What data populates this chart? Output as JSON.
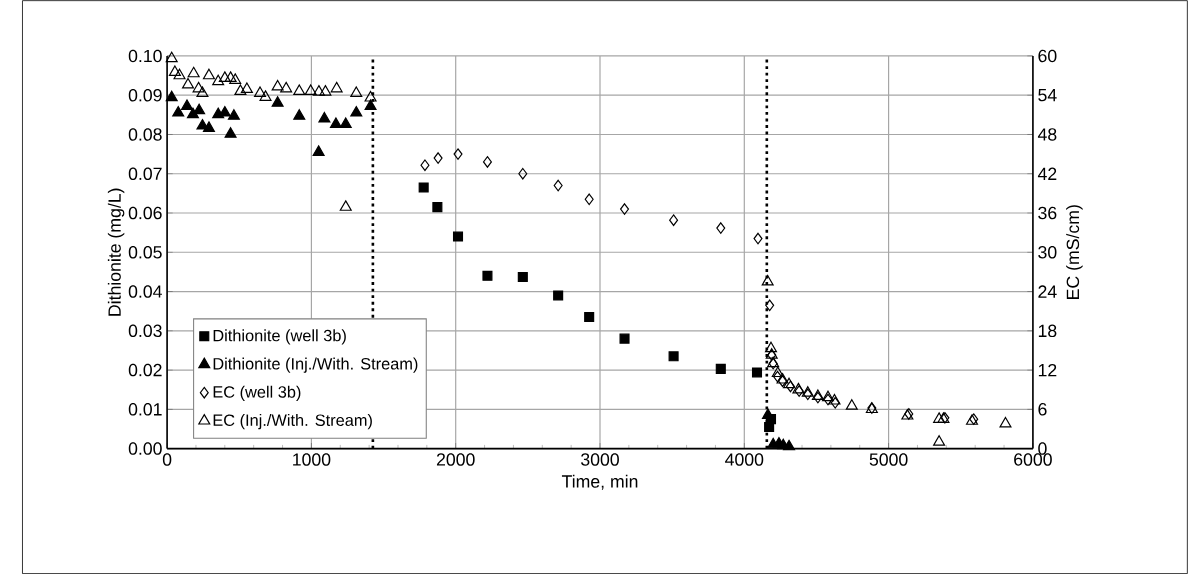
{
  "chart_data": {
    "type": "scatter",
    "xlabel": "Time, min",
    "ylabel": "Dithionite (mg/L)",
    "y2label": "EC (mS/cm)",
    "xlim": [
      0,
      6000
    ],
    "xticks": [
      0,
      1000,
      2000,
      3000,
      4000,
      5000,
      6000
    ],
    "ylim": [
      0,
      0.1
    ],
    "yticks": [
      {
        "value": 0,
        "label": "0.00"
      },
      {
        "value": 0.01,
        "label": "0.01"
      },
      {
        "value": 0.02,
        "label": "0.02"
      },
      {
        "value": 0.03,
        "label": "0.03"
      },
      {
        "value": 0.04,
        "label": "0.04"
      },
      {
        "value": 0.05,
        "label": "0.05"
      },
      {
        "value": 0.06,
        "label": "0.06"
      },
      {
        "value": 0.07,
        "label": "0.07"
      },
      {
        "value": 0.08,
        "label": "0.08"
      },
      {
        "value": 0.09,
        "label": "0.09"
      },
      {
        "value": 0.1,
        "label": "0.10"
      }
    ],
    "y2lim": [
      0,
      60
    ],
    "y2ticks": [
      0,
      6,
      12,
      18,
      24,
      30,
      36,
      42,
      48,
      54,
      60
    ],
    "grid": true,
    "legend": "bottom left",
    "ref_lines": [
      {
        "axis": "x",
        "value": 1426,
        "color": "#000000",
        "line_style": "dotted"
      },
      {
        "axis": "x",
        "value": 4156,
        "color": "#000000",
        "line_style": "dotted"
      }
    ],
    "series": [
      {
        "name": "Dithionite (well 3b)",
        "color": "#000000",
        "marker": "square",
        "axis": "y",
        "x": [
          1778,
          1873,
          2016,
          2220,
          2465,
          2710,
          2925,
          3170,
          3510,
          3837,
          4088,
          4172,
          4185
        ],
        "values": [
          0.0665,
          0.0615,
          0.054,
          0.044,
          0.0437,
          0.039,
          0.0335,
          0.028,
          0.0235,
          0.0203,
          0.0194,
          0.0055,
          0.0075
        ]
      },
      {
        "name": "Dithionite (Inj./With. Stream)",
        "color": "#000000",
        "marker": "triangle",
        "axis": "y",
        "x": [
          32,
          77,
          138,
          179,
          222,
          245,
          290,
          354,
          400,
          440,
          463,
          766,
          916,
          1050,
          1090,
          1170,
          1238,
          1311,
          1410,
          4164,
          4200,
          4240,
          4270,
          4310
        ],
        "values": [
          0.0894,
          0.0855,
          0.0872,
          0.0851,
          0.0861,
          0.0822,
          0.0816,
          0.0851,
          0.0855,
          0.0801,
          0.0847,
          0.088,
          0.0847,
          0.0755,
          0.084,
          0.0826,
          0.0826,
          0.0855,
          0.0872,
          0.0085,
          0.001,
          0.0012,
          0.0008,
          0.0005
        ]
      },
      {
        "name": "EC (well 3b)",
        "color": "#000000",
        "marker": "diamond",
        "axis": "y2",
        "x": [
          1787,
          1878,
          2016,
          2220,
          2465,
          2710,
          2925,
          3170,
          3510,
          3837,
          4095,
          4176,
          4190,
          4200,
          4230,
          4265,
          4320,
          4380,
          4440,
          4510,
          4580,
          4630,
          4884,
          5140,
          5390,
          5590
        ],
        "values": [
          43.3,
          44.4,
          45.0,
          43.8,
          42.0,
          40.2,
          38.1,
          36.6,
          34.9,
          33.7,
          32.1,
          21.9,
          14.3,
          13.0,
          11.0,
          10.3,
          9.5,
          8.8,
          8.3,
          7.8,
          7.5,
          7.0,
          6.2,
          5.3,
          4.7,
          4.5
        ]
      },
      {
        "name": "EC (Inj./With. Stream)",
        "color": "#000000",
        "marker": "triangle",
        "axis": "y2",
        "x": [
          32,
          54,
          86,
          145,
          184,
          218,
          245,
          290,
          354,
          400,
          440,
          472,
          508,
          553,
          644,
          682,
          766,
          825,
          916,
          995,
          1052,
          1097,
          1175,
          1238,
          1311,
          1410,
          4162,
          4185,
          4190,
          4200,
          4232,
          4265,
          4310,
          4375,
          4440,
          4510,
          4580,
          4625,
          4745,
          4884,
          5130,
          5350,
          5380,
          5350,
          5578,
          5810
        ],
        "values": [
          59.6,
          57.5,
          57.0,
          55.6,
          57.3,
          55.0,
          54.3,
          57.0,
          56.1,
          56.6,
          56.6,
          56.3,
          54.6,
          54.9,
          54.3,
          53.7,
          55.3,
          55.0,
          54.6,
          54.6,
          54.5,
          54.5,
          55.0,
          36.9,
          54.3,
          53.6,
          25.5,
          15.3,
          14.3,
          13.0,
          11.5,
          10.5,
          9.8,
          9.0,
          8.5,
          8.0,
          7.8,
          7.3,
          6.5,
          6.0,
          5.0,
          4.5,
          4.5,
          1.0,
          4.2,
          3.8
        ]
      }
    ]
  }
}
